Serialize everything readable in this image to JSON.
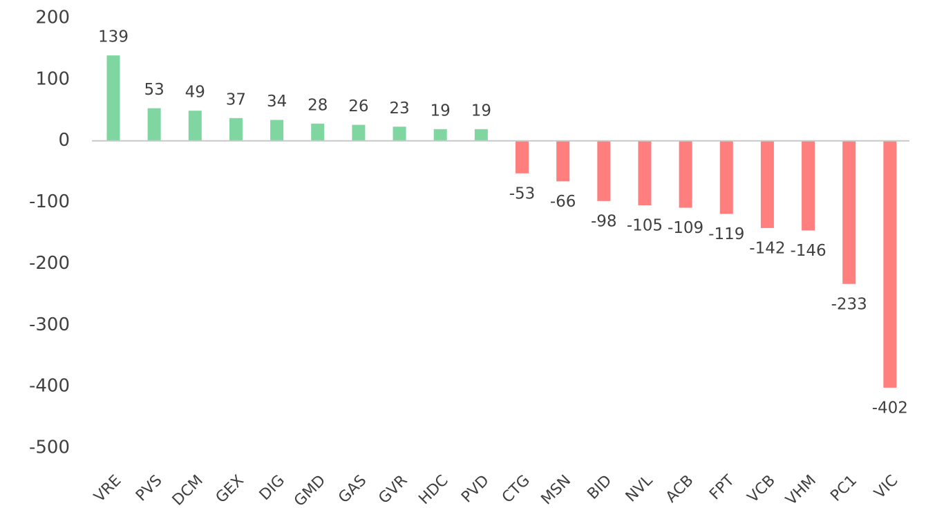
{
  "chart_data": {
    "type": "bar",
    "title": "",
    "xlabel": "",
    "ylabel": "",
    "ylim": [
      -500,
      200
    ],
    "yticks": [
      200,
      100,
      0,
      -100,
      -200,
      -300,
      -400,
      -500
    ],
    "grid": false,
    "legend": "none",
    "categories": [
      "VRE",
      "PVS",
      "DCM",
      "GEX",
      "DIG",
      "GMD",
      "GAS",
      "GVR",
      "HDC",
      "PVD",
      "CTG",
      "MSN",
      "BID",
      "NVL",
      "ACB",
      "FPT",
      "VCB",
      "VHM",
      "PC1",
      "VIC"
    ],
    "values": [
      139,
      53,
      49,
      37,
      34,
      28,
      26,
      23,
      19,
      19,
      -53,
      -66,
      -98,
      -105,
      -109,
      -119,
      -142,
      -146,
      -233,
      -402
    ],
    "colors": {
      "positive": "#7fd6a0",
      "negative": "#ff7f7f",
      "axis": "#c8c8c8",
      "text": "#404040"
    }
  }
}
